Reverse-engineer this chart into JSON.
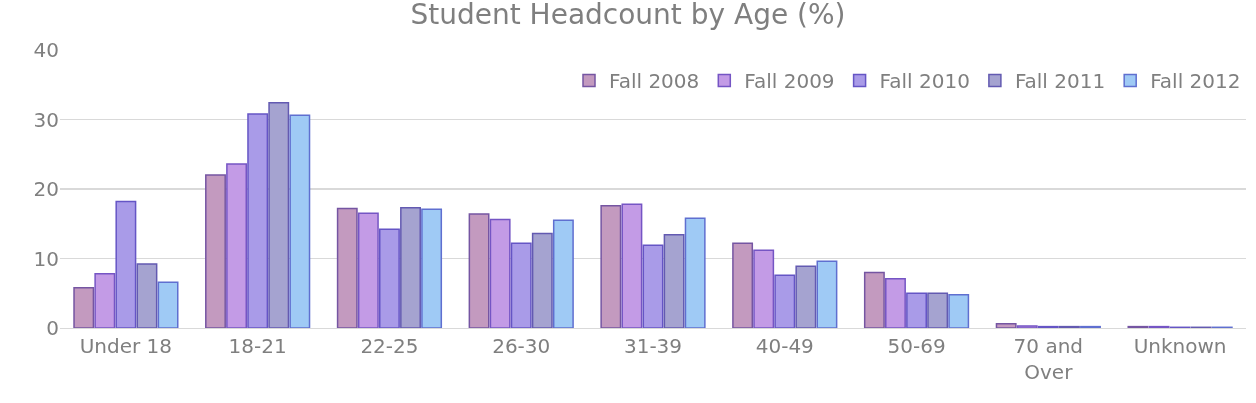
{
  "chart_data": {
    "type": "bar",
    "title": "Student Headcount by Age (%)",
    "categories": [
      "Under 18",
      "18-21",
      "22-25",
      "26-30",
      "31-39",
      "40-49",
      "50-69",
      "70 and Over",
      "Unknown"
    ],
    "series": [
      {
        "name": "Fall 2008",
        "color": "#c39abf",
        "values": [
          5.8,
          22.0,
          17.2,
          16.4,
          17.6,
          12.2,
          8.0,
          0.6,
          0.2
        ]
      },
      {
        "name": "Fall 2009",
        "color": "#c39be6",
        "values": [
          7.8,
          23.6,
          16.5,
          15.6,
          17.8,
          11.2,
          7.1,
          0.3,
          0.2
        ]
      },
      {
        "name": "Fall 2010",
        "color": "#a99be8",
        "values": [
          18.2,
          30.8,
          14.2,
          12.2,
          11.9,
          7.6,
          5.0,
          0.2,
          0.1
        ]
      },
      {
        "name": "Fall 2011",
        "color": "#a5a3d0",
        "values": [
          9.2,
          32.4,
          17.3,
          13.6,
          13.4,
          8.9,
          5.0,
          0.2,
          0.1
        ]
      },
      {
        "name": "Fall 2012",
        "color": "#9fcaf5",
        "values": [
          6.6,
          30.6,
          17.1,
          15.5,
          15.8,
          9.6,
          4.8,
          0.2,
          0.1
        ]
      }
    ],
    "ylim": [
      0,
      40
    ],
    "yticks": [
      0,
      10,
      20,
      30,
      40
    ],
    "grid": "y",
    "legend": "top right"
  }
}
